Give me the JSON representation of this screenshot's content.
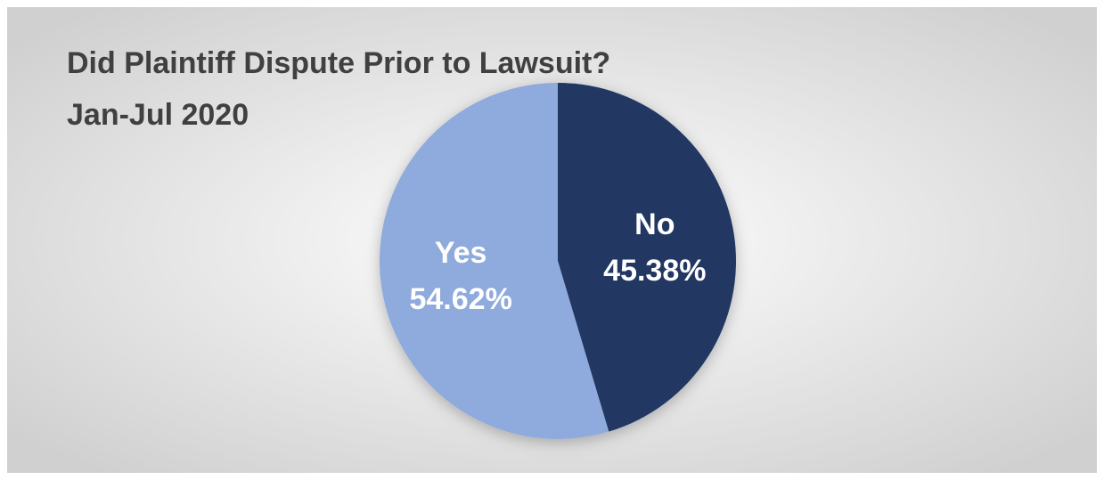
{
  "chart_data": {
    "type": "pie",
    "title": "Did Plaintiff Dispute Prior to Lawsuit?",
    "subtitle": "Jan-Jul 2020",
    "categories": [
      "No",
      "Yes"
    ],
    "values": [
      45.38,
      54.62
    ],
    "value_labels": [
      "45.38%",
      "54.62%"
    ],
    "colors": [
      "#203864",
      "#8faadc"
    ]
  }
}
